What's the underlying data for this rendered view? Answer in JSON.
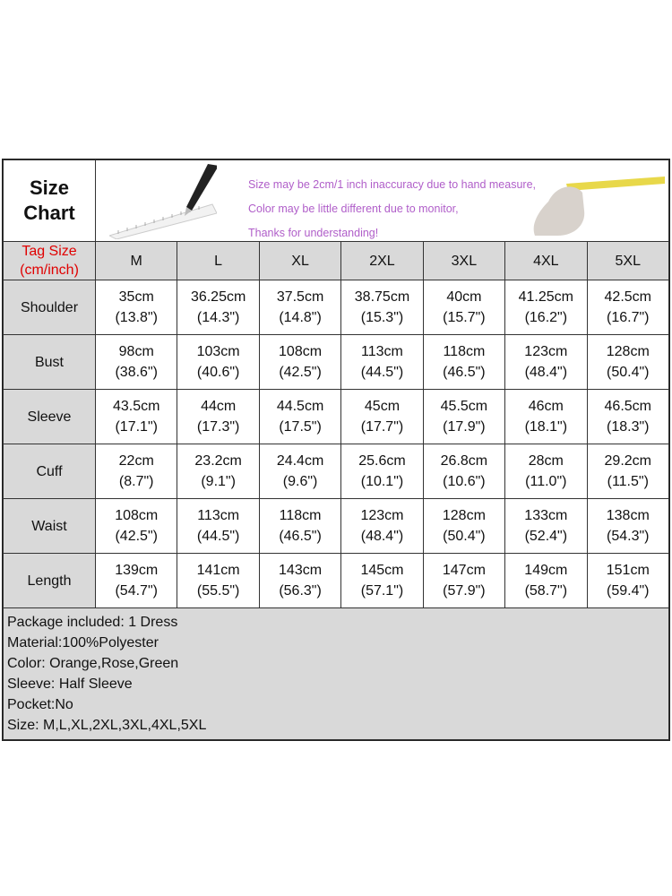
{
  "title_line1": "Size",
  "title_line2": "Chart",
  "notes": [
    "Size may be 2cm/1 inch inaccuracy due to hand measure,",
    "Color may be little different due to monitor,",
    "Thanks for understanding!"
  ],
  "tag_label_line1": "Tag Size",
  "tag_label_line2": "(cm/inch)",
  "sizes": [
    "M",
    "L",
    "XL",
    "2XL",
    "3XL",
    "4XL",
    "5XL"
  ],
  "rows": [
    {
      "label": "Shoulder",
      "cm": [
        "35cm",
        "36.25cm",
        "37.5cm",
        "38.75cm",
        "40cm",
        "41.25cm",
        "42.5cm"
      ],
      "inch": [
        "(13.8\")",
        "(14.3\")",
        "(14.8\")",
        "(15.3\")",
        "(15.7\")",
        "(16.2\")",
        "(16.7\")"
      ]
    },
    {
      "label": "Bust",
      "cm": [
        "98cm",
        "103cm",
        "108cm",
        "113cm",
        "118cm",
        "123cm",
        "128cm"
      ],
      "inch": [
        "(38.6\")",
        "(40.6\")",
        "(42.5\")",
        "(44.5\")",
        "(46.5\")",
        "(48.4\")",
        "(50.4\")"
      ]
    },
    {
      "label": "Sleeve",
      "cm": [
        "43.5cm",
        "44cm",
        "44.5cm",
        "45cm",
        "45.5cm",
        "46cm",
        "46.5cm"
      ],
      "inch": [
        "(17.1\")",
        "(17.3\")",
        "(17.5\")",
        "(17.7\")",
        "(17.9\")",
        "(18.1\")",
        "(18.3\")"
      ]
    },
    {
      "label": "Cuff",
      "cm": [
        "22cm",
        "23.2cm",
        "24.4cm",
        "25.6cm",
        "26.8cm",
        "28cm",
        "29.2cm"
      ],
      "inch": [
        "(8.7\")",
        "(9.1\")",
        "(9.6\")",
        "(10.1\")",
        "(10.6\")",
        "(11.0\")",
        "(11.5\")"
      ]
    },
    {
      "label": "Waist",
      "cm": [
        "108cm",
        "113cm",
        "118cm",
        "123cm",
        "128cm",
        "133cm",
        "138cm"
      ],
      "inch": [
        "(42.5\")",
        "(44.5\")",
        "(46.5\")",
        "(48.4\")",
        "(50.4\")",
        "(52.4\")",
        "(54.3\")"
      ]
    },
    {
      "label": "Length",
      "cm": [
        "139cm",
        "141cm",
        "143cm",
        "145cm",
        "147cm",
        "149cm",
        "151cm"
      ],
      "inch": [
        "(54.7\")",
        "(55.5\")",
        "(56.3\")",
        "(57.1\")",
        "(57.9\")",
        "(58.7\")",
        "(59.4\")"
      ]
    }
  ],
  "info": [
    "Package included: 1 Dress",
    "Material:100%Polyester",
    "Color: Orange,Rose,Green",
    "Sleeve: Half Sleeve",
    "Pocket:No",
    "Size: M,L,XL,2XL,3XL,4XL,5XL"
  ],
  "colors": {
    "header_bg": "#d9d9d9",
    "tag_label": "#e00000",
    "notes_text": "#b05ec9"
  }
}
